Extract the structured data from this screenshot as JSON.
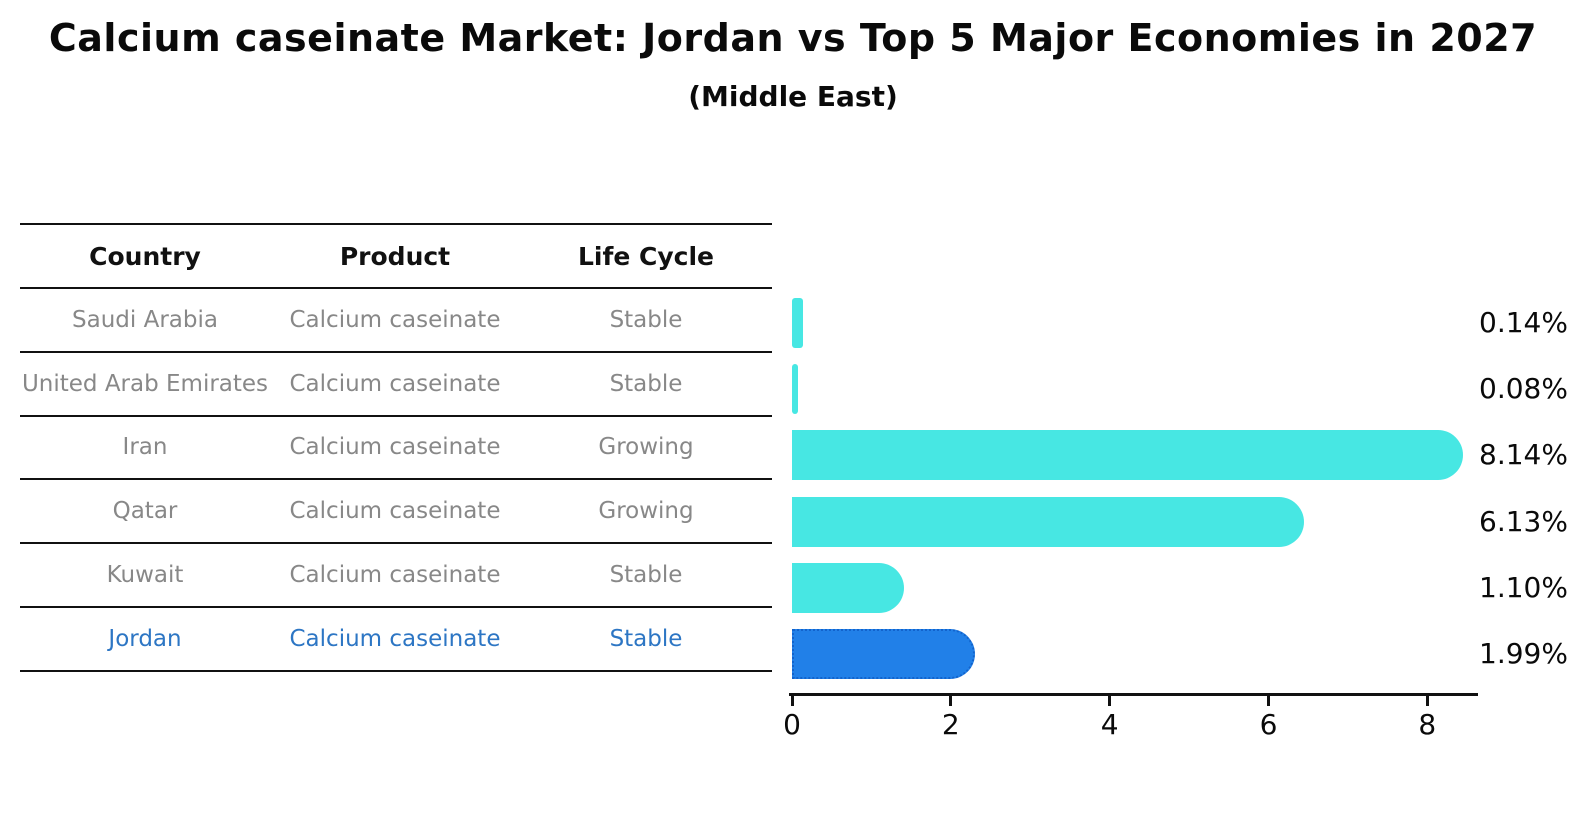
{
  "title": "Calcium caseinate Market: Jordan vs Top 5 Major Economies in 2027",
  "subtitle": "(Middle East)",
  "table": {
    "headers": [
      "Country",
      "Product",
      "Life Cycle"
    ],
    "rows": [
      {
        "country": "Saudi Arabia",
        "product": "Calcium caseinate",
        "life_cycle": "Stable",
        "highlight": false
      },
      {
        "country": "United Arab Emirates",
        "product": "Calcium caseinate",
        "life_cycle": "Stable",
        "highlight": false
      },
      {
        "country": "Iran",
        "product": "Calcium caseinate",
        "life_cycle": "Growing",
        "highlight": false
      },
      {
        "country": "Qatar",
        "product": "Calcium caseinate",
        "life_cycle": "Growing",
        "highlight": false
      },
      {
        "country": "Kuwait",
        "product": "Calcium caseinate",
        "life_cycle": "Stable",
        "highlight": false
      },
      {
        "country": "Jordan",
        "product": "Calcium caseinate",
        "life_cycle": "Stable",
        "highlight": true
      }
    ]
  },
  "chart_data": {
    "type": "bar",
    "orientation": "horizontal",
    "title": "Calcium caseinate Market: Jordan vs Top 5 Major Economies in 2027",
    "subtitle": "(Middle East)",
    "categories": [
      "Saudi Arabia",
      "United Arab Emirates",
      "Iran",
      "Qatar",
      "Kuwait",
      "Jordan"
    ],
    "values": [
      0.14,
      0.08,
      8.14,
      6.13,
      1.1,
      1.99
    ],
    "value_labels": [
      "0.14%",
      "0.08%",
      "8.14%",
      "6.13%",
      "1.10%",
      "1.99%"
    ],
    "highlight_index": 5,
    "x_ticks": [
      0,
      2,
      4,
      6,
      8
    ],
    "x_tick_labels": [
      "0",
      "2",
      "4",
      "6",
      "8"
    ],
    "xlim": [
      0,
      8.6
    ],
    "grid": false,
    "legend": false
  },
  "colors": {
    "bar": "#47E7E3",
    "highlight_bar": "#2180E8",
    "highlight_bar_border": "#1263cc",
    "highlight_text": "#2d76c4",
    "cell_text": "#888888",
    "header_text": "#111111",
    "axis": "#111111"
  }
}
